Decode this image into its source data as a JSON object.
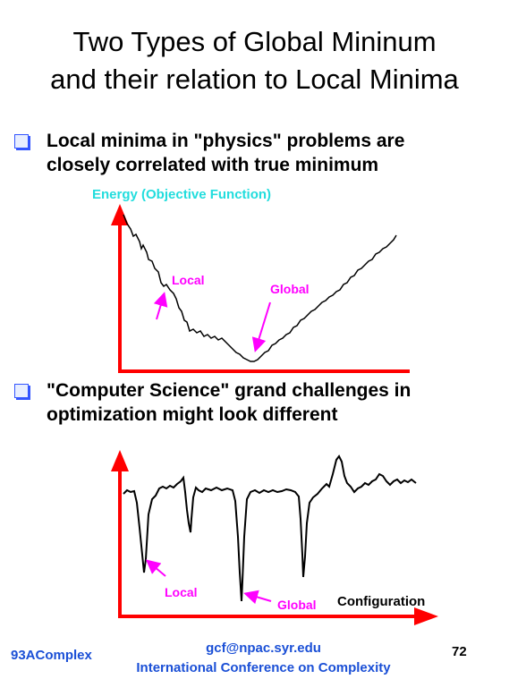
{
  "slide": {
    "title_line1": "Two Types of Global Mininum",
    "title_line2": "and their relation to Local Minima"
  },
  "bullets": [
    {
      "line1": "Local minima in \"physics\" problems are",
      "line2": "closely correlated with true minimum"
    },
    {
      "line1": "\"Computer Science\" grand challenges in",
      "line2": "optimization might look different"
    }
  ],
  "diagram1": {
    "axis_label": "Energy (Objective Function)",
    "local_label": "Local",
    "global_label": "Global"
  },
  "diagram2": {
    "local_label": "Local",
    "global_label": "Global",
    "x_label": "Configuration"
  },
  "footer": {
    "left": "93AComplex",
    "email": "gcf@npac.syr.edu",
    "conference": "International Conference on Complexity",
    "page_number": "72"
  },
  "colors": {
    "axis": "#ff0000",
    "annotation": "#ff00ff",
    "axis_label": "#22dddd",
    "footer": "#1a4fd6",
    "bullet": "#3355ff"
  }
}
